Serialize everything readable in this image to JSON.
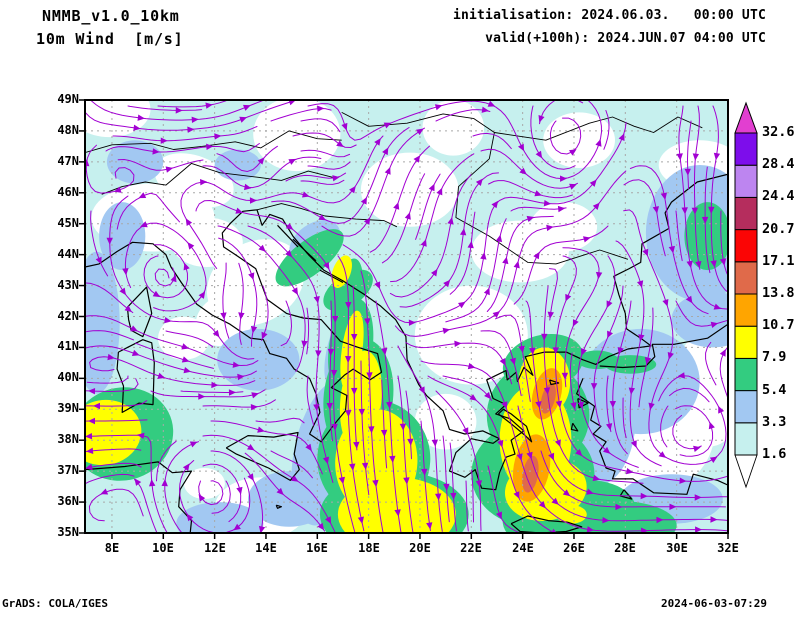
{
  "header": {
    "model_title": "NMMB_v1.0_10km",
    "field_title": "10m Wind  [m/s]",
    "init_line": "initialisation: 2024.06.03.   00:00 UTC",
    "valid_line": "valid(+100h): 2024.JUN.07 04:00 UTC"
  },
  "footer": {
    "credit": "GrADS: COLA/IGES",
    "timestamp": "2024-06-03-07:29"
  },
  "axes": {
    "lat_ticks": [
      "49N",
      "48N",
      "47N",
      "46N",
      "45N",
      "44N",
      "43N",
      "42N",
      "41N",
      "40N",
      "39N",
      "38N",
      "37N",
      "36N",
      "35N"
    ],
    "lon_ticks": [
      "8E",
      "10E",
      "12E",
      "14E",
      "16E",
      "18E",
      "20E",
      "22E",
      "24E",
      "26E",
      "28E",
      "30E",
      "32E"
    ]
  },
  "colorbar": {
    "levels": [
      "1.6",
      "3.3",
      "5.4",
      "7.9",
      "10.7",
      "13.8",
      "17.1",
      "20.7",
      "24.4",
      "28.4",
      "32.6"
    ],
    "colors": [
      "#c6f0ee",
      "#a2c8f2",
      "#33cc80",
      "#ffff00",
      "#ffa500",
      "#e06a4a",
      "#fb0505",
      "#b52d5d",
      "#bd85f0",
      "#7d0deb"
    ],
    "over_color": "#e23fd0",
    "under_color": "#ffffff"
  },
  "map": {
    "lon_min": 6.95,
    "lon_max": 32,
    "lat_min": 35,
    "lat_max": 49,
    "stream_color": "#a200d2",
    "coast_color": "#000000",
    "grid_color": "#a8a8a8",
    "palette": {
      "w": "#ffffff",
      "c1": "#c6f0ee",
      "c2": "#a2c8f2",
      "g": "#33cc80",
      "y": "#ffff00",
      "o": "#ffa500",
      "s": "#e06a4a"
    },
    "shading": [
      [
        "w",
        7.9,
        48.7,
        1.6,
        0.9,
        0
      ],
      [
        "w",
        15.2,
        47.9,
        1.7,
        1.2,
        0
      ],
      [
        "w",
        11.2,
        46.4,
        1.6,
        0.8,
        20
      ],
      [
        "w",
        9.6,
        45.2,
        2.4,
        1.1,
        0
      ],
      [
        "w",
        11.7,
        44.4,
        1.4,
        0.8,
        0
      ],
      [
        "w",
        13.6,
        43.1,
        2.0,
        1.3,
        -30
      ],
      [
        "w",
        12.4,
        41.9,
        1.2,
        0.8,
        -30
      ],
      [
        "w",
        21.3,
        48.1,
        1.2,
        0.9,
        0
      ],
      [
        "w",
        19.6,
        46.1,
        1.9,
        1.2,
        0
      ],
      [
        "w",
        22.0,
        41.4,
        2.2,
        1.6,
        0
      ],
      [
        "w",
        21.0,
        38.6,
        1.2,
        0.9,
        0
      ],
      [
        "w",
        23.9,
        44.1,
        1.9,
        1.0,
        0
      ],
      [
        "w",
        26.2,
        47.7,
        1.4,
        0.9,
        0
      ],
      [
        "w",
        29.6,
        38.4,
        1.9,
        1.9,
        0
      ],
      [
        "w",
        28.7,
        36.7,
        1.4,
        1.0,
        0
      ],
      [
        "w",
        31.3,
        39.7,
        1.4,
        1.9,
        0
      ],
      [
        "w",
        30.9,
        46.9,
        1.6,
        0.8,
        0
      ],
      [
        "w",
        25.6,
        44.9,
        1.3,
        0.8,
        0
      ],
      [
        "w",
        13.8,
        35.8,
        1.8,
        1.0,
        0
      ],
      [
        "w",
        11.6,
        36.6,
        0.8,
        0.5,
        0
      ],
      [
        "w",
        10.8,
        41.3,
        1.0,
        0.7,
        0
      ],
      [
        "c2",
        8.9,
        47.0,
        1.1,
        0.7,
        0
      ],
      [
        "c2",
        12.9,
        46.9,
        0.9,
        0.5,
        0
      ],
      [
        "c2",
        8.4,
        44.6,
        0.9,
        1.1,
        0
      ],
      [
        "c2",
        7.4,
        41.8,
        0.9,
        2.3,
        0
      ],
      [
        "c2",
        13.7,
        40.6,
        1.6,
        1.0,
        0
      ],
      [
        "c2",
        15.9,
        44.4,
        1.1,
        0.6,
        -35
      ],
      [
        "c2",
        16.4,
        37.6,
        1.3,
        2.4,
        12
      ],
      [
        "c2",
        14.9,
        36.1,
        1.6,
        0.9,
        0
      ],
      [
        "c2",
        17.0,
        41.0,
        0.6,
        1.4,
        15
      ],
      [
        "c2",
        26.8,
        38.7,
        1.6,
        2.2,
        0
      ],
      [
        "c2",
        28.6,
        39.9,
        2.3,
        1.7,
        0
      ],
      [
        "c2",
        30.9,
        44.7,
        2.1,
        2.2,
        0
      ],
      [
        "c2",
        31.4,
        41.9,
        1.6,
        0.9,
        0
      ],
      [
        "c2",
        29.8,
        36.1,
        2.0,
        0.8,
        0
      ],
      [
        "c2",
        12.2,
        35.3,
        1.7,
        0.7,
        0
      ],
      [
        "g",
        17.15,
        42.6,
        0.55,
        1.3,
        12
      ],
      [
        "g",
        17.3,
        41.0,
        0.85,
        1.6,
        8
      ],
      [
        "g",
        17.6,
        39.4,
        1.35,
        1.9,
        6
      ],
      [
        "g",
        18.2,
        37.4,
        2.2,
        1.9,
        3
      ],
      [
        "g",
        19.0,
        35.6,
        2.9,
        1.4,
        0
      ],
      [
        "g",
        15.7,
        43.9,
        1.6,
        0.55,
        -38
      ],
      [
        "g",
        17.2,
        42.85,
        1.1,
        0.5,
        -35
      ],
      [
        "g",
        8.4,
        38.2,
        2.0,
        1.5,
        -15
      ],
      [
        "g",
        24.8,
        40.5,
        1.6,
        0.9,
        -15
      ],
      [
        "g",
        24.6,
        38.8,
        2.0,
        1.7,
        0
      ],
      [
        "g",
        24.4,
        36.9,
        2.4,
        1.7,
        0
      ],
      [
        "g",
        25.8,
        35.6,
        2.6,
        1.1,
        -8
      ],
      [
        "g",
        27.6,
        35.25,
        2.4,
        0.8,
        0
      ],
      [
        "g",
        26.9,
        40.6,
        0.8,
        0.3,
        0
      ],
      [
        "g",
        28.2,
        40.45,
        1.0,
        0.3,
        0
      ],
      [
        "g",
        31.2,
        44.6,
        0.9,
        1.1,
        0
      ],
      [
        "y",
        7.7,
        38.25,
        1.45,
        1.05,
        -10
      ],
      [
        "y",
        16.95,
        43.45,
        0.35,
        0.55,
        20
      ],
      [
        "y",
        17.35,
        40.9,
        0.4,
        1.3,
        8
      ],
      [
        "y",
        17.7,
        39.3,
        0.8,
        1.6,
        6
      ],
      [
        "y",
        18.3,
        37.3,
        1.6,
        1.7,
        3
      ],
      [
        "y",
        19.1,
        35.6,
        2.3,
        1.2,
        0
      ],
      [
        "y",
        24.85,
        39.9,
        1.0,
        1.1,
        0
      ],
      [
        "y",
        24.5,
        38.0,
        1.4,
        1.8,
        0
      ],
      [
        "y",
        24.9,
        36.4,
        1.6,
        1.0,
        -10
      ],
      [
        "y",
        25.9,
        35.6,
        0.6,
        0.3,
        0
      ],
      [
        "o",
        24.95,
        39.5,
        0.55,
        0.85,
        15
      ],
      [
        "o",
        24.35,
        37.1,
        0.7,
        1.1,
        10
      ],
      [
        "s",
        25.0,
        39.35,
        0.26,
        0.5,
        15
      ],
      [
        "s",
        24.3,
        36.9,
        0.3,
        0.6,
        10
      ]
    ],
    "coastlines": [
      [
        6.95,
        43.6,
        7.5,
        43.7,
        8.2,
        44.1,
        8.8,
        44.4,
        9.6,
        44.35,
        10.1,
        44.0,
        10.3,
        43.6,
        10.7,
        43.1,
        11.3,
        42.4,
        11.9,
        42.05,
        12.6,
        41.75,
        13.4,
        41.3,
        13.9,
        41.25,
        14.15,
        40.8,
        14.8,
        40.65,
        15.1,
        40.3,
        15.7,
        40.0,
        15.95,
        39.5,
        16.1,
        38.9,
        15.7,
        38.2,
        16.15,
        37.95,
        16.6,
        38.45,
        17.1,
        38.95,
        17.15,
        39.45,
        16.55,
        39.7,
        17.05,
        40.1,
        17.4,
        40.3,
        18.05,
        39.95,
        18.5,
        40.2,
        18.35,
        40.8,
        17.6,
        41.0,
        16.9,
        41.2,
        16.15,
        41.9,
        15.45,
        41.95,
        14.8,
        42.1,
        14.05,
        42.55,
        13.6,
        43.55,
        12.9,
        43.95,
        12.35,
        44.25,
        12.3,
        44.7,
        12.6,
        45.0,
        13.1,
        45.4,
        13.65,
        45.45,
        13.85,
        44.95,
        14.15,
        45.3,
        14.65,
        45.15,
        15.05,
        44.6,
        15.65,
        44.0,
        16.25,
        43.5,
        17.0,
        43.15,
        17.85,
        42.7,
        18.45,
        42.35,
        19.05,
        41.9,
        19.45,
        41.35,
        19.5,
        40.6,
        19.95,
        39.8,
        20.25,
        39.45,
        20.9,
        38.95,
        21.15,
        38.35,
        21.75,
        38.2,
        22.45,
        38.3,
        23.1,
        38.05,
        22.85,
        37.9,
        22.0,
        38.05,
        21.4,
        37.6,
        21.15,
        37.0,
        21.75,
        36.8,
        22.15,
        37.05,
        22.4,
        36.45,
        22.95,
        36.4,
        23.1,
        36.95,
        23.35,
        37.45,
        23.7,
        37.55,
        23.55,
        38.0,
        24.05,
        38.3,
        23.5,
        38.7,
        22.95,
        38.85,
        23.35,
        39.15,
        22.85,
        39.35,
        22.6,
        39.95,
        23.35,
        40.25,
        23.4,
        39.95,
        23.75,
        40.2,
        23.8,
        39.9,
        24.05,
        40.35,
        24.4,
        40.1,
        24.1,
        40.7,
        24.85,
        40.85,
        25.7,
        40.85,
        26.35,
        40.6,
        26.85,
        40.45,
        27.35,
        40.7,
        28.1,
        40.95,
        29.0,
        41.05,
        28.6,
        41.3,
        28.05,
        41.6,
        28.0,
        42.1,
        27.75,
        42.7,
        27.55,
        43.3,
        28.15,
        43.55,
        28.6,
        43.75,
        28.65,
        44.35,
        29.7,
        44.85,
        29.55,
        45.35,
        29.8,
        45.7,
        30.8,
        46.35,
        32,
        46.6
      ],
      [
        26.35,
        40.0,
        26.1,
        39.5,
        26.8,
        39.1,
        26.65,
        38.65,
        27.05,
        38.45,
        26.75,
        38.2,
        27.25,
        37.95,
        27.0,
        37.65,
        27.25,
        37.1,
        27.6,
        37.0,
        27.5,
        36.75,
        28.3,
        36.75,
        29.1,
        36.3,
        30.4,
        36.25,
        30.65,
        36.9,
        31.6,
        36.7,
        32,
        36.55
      ],
      [
        27.0,
        40.4,
        27.9,
        40.35,
        28.8,
        40.4,
        29.15,
        40.7,
        29.05,
        41.1,
        29.9,
        41.1,
        31.2,
        41.3,
        32,
        41.75
      ],
      [
        6.95,
        37.05,
        8.5,
        37.15,
        9.8,
        37.3,
        10.35,
        36.95,
        11.1,
        37.0,
        10.65,
        36.4,
        10.6,
        35.85,
        11.1,
        35.4,
        11.05,
        35.0
      ],
      [
        12.45,
        37.75,
        13.3,
        38.15,
        14.3,
        38.1,
        15.25,
        38.25,
        15.1,
        37.55,
        15.3,
        37.05,
        14.95,
        36.7,
        14.1,
        37.1,
        12.85,
        37.55,
        12.45,
        37.75
      ],
      [
        8.25,
        40.85,
        9.2,
        41.25,
        9.55,
        41.15,
        9.65,
        40.5,
        9.6,
        39.15,
        9.05,
        39.2,
        8.4,
        38.9,
        8.45,
        39.75,
        8.2,
        40.3,
        8.25,
        40.85
      ],
      [
        8.6,
        42.3,
        9.35,
        42.95,
        9.55,
        42.1,
        9.2,
        41.35,
        8.75,
        41.55,
        8.65,
        41.9,
        8.6,
        42.3
      ],
      [
        23.55,
        35.3,
        24.2,
        35.55,
        25.0,
        35.4,
        25.75,
        35.35,
        26.3,
        35.2,
        25.7,
        35.05,
        24.7,
        35.0,
        23.9,
        35.05,
        23.55,
        35.3
      ],
      [
        23.05,
        38.85,
        23.6,
        38.5,
        24.1,
        38.15,
        24.35,
        37.95,
        24.15,
        38.45,
        23.55,
        38.85,
        23.25,
        39.0,
        23.05,
        38.85
      ],
      [
        26.15,
        39.35,
        26.55,
        39.2,
        26.2,
        39.05,
        26.15,
        39.35
      ],
      [
        25.95,
        38.55,
        26.15,
        38.3,
        25.9,
        38.35,
        25.95,
        38.55
      ],
      [
        27.95,
        36.4,
        28.25,
        36.1,
        27.8,
        36.2,
        27.95,
        36.4
      ],
      [
        25.05,
        39.95,
        25.4,
        39.85,
        25.1,
        39.8,
        25.05,
        39.95
      ],
      [
        14.45,
        44.95,
        15.25,
        44.25
      ],
      [
        15.05,
        44.5,
        15.95,
        43.8
      ],
      [
        16.1,
        43.5,
        17.0,
        43.1
      ],
      [
        14.4,
        35.9,
        14.6,
        35.85,
        14.45,
        35.8,
        14.4,
        35.9
      ]
    ],
    "borders": [
      [
        6.95,
        47.3,
        8.0,
        47.55,
        9.5,
        47.6,
        10.4,
        47.4,
        11.5,
        47.5,
        12.8,
        47.65,
        13.8,
        47.45,
        14.9,
        48.0,
        16.0,
        47.75,
        16.95,
        47.7
      ],
      [
        7.6,
        45.95,
        8.4,
        46.2,
        9.3,
        46.35,
        10.1,
        46.25,
        11.1,
        46.95,
        12.2,
        46.65,
        13.7,
        46.5,
        14.6,
        46.4,
        15.65,
        46.7,
        16.6,
        46.5
      ],
      [
        16.95,
        48.6,
        18.0,
        48.15,
        19.5,
        48.25,
        20.9,
        48.55,
        22.1,
        48.4,
        22.9,
        47.95,
        24.9,
        47.7,
        26.6,
        48.25,
        27.5,
        48.45,
        28.35,
        48.15,
        29.1,
        47.95,
        30.05,
        48.45,
        31.0,
        48.1
      ],
      [
        22.9,
        47.95,
        22.7,
        47.1,
        21.5,
        46.2,
        21.4,
        45.2,
        22.7,
        44.6,
        24.2,
        43.75,
        25.3,
        43.7,
        27.0,
        44.15,
        28.1,
        43.85
      ],
      [
        13.65,
        45.45,
        14.6,
        45.65,
        15.35,
        45.5,
        16.3,
        45.25,
        17.5,
        45.15,
        18.6,
        45.1,
        19.1,
        44.9
      ]
    ],
    "flow": {
      "vortices": [
        [
          9.9,
          43.3,
          1.0,
          1.5
        ],
        [
          11.8,
          36.5,
          -1.5,
          1.8
        ],
        [
          13.4,
          46.4,
          0.8,
          1.3
        ],
        [
          8.3,
          46.7,
          -0.7,
          1.2
        ],
        [
          25.9,
          47.4,
          1.1,
          2.0
        ],
        [
          27.9,
          46.2,
          -0.8,
          1.5
        ],
        [
          30.6,
          38.1,
          0.9,
          1.7
        ]
      ],
      "streams": [
        [
          7.6,
          38.4,
          -2.4,
          0.2,
          1.5
        ],
        [
          17.3,
          42.6,
          -0.3,
          -1.8,
          1.3
        ],
        [
          17.4,
          40.8,
          -0.1,
          -2.2,
          1.4
        ],
        [
          17.9,
          38.8,
          0.15,
          -2.4,
          1.7
        ],
        [
          18.6,
          36.6,
          0.25,
          -2.4,
          1.9
        ],
        [
          19.3,
          35.2,
          0.3,
          -2.2,
          2.0
        ],
        [
          15.2,
          44.3,
          0.9,
          -0.9,
          1.3
        ],
        [
          24.9,
          41.5,
          0.0,
          -1.5,
          1.2
        ],
        [
          24.7,
          39.5,
          0.0,
          -2.2,
          1.4
        ],
        [
          24.5,
          37.4,
          0.4,
          -2.2,
          1.4
        ],
        [
          25.4,
          35.8,
          1.4,
          -1.2,
          1.4
        ],
        [
          27.2,
          35.3,
          2.2,
          -0.1,
          1.7
        ],
        [
          30.0,
          35.4,
          2.2,
          0.15,
          1.8
        ],
        [
          19.3,
          45.8,
          0.5,
          1.4,
          2.0
        ],
        [
          20.8,
          47.8,
          1.3,
          0.7,
          1.5
        ],
        [
          10.0,
          48.6,
          1.5,
          -0.1,
          1.5
        ],
        [
          14.5,
          48.8,
          1.3,
          0.3,
          1.5
        ],
        [
          30.9,
          44.5,
          -0.2,
          -1.5,
          1.6
        ],
        [
          28.4,
          41.0,
          -0.3,
          -1.7,
          1.5
        ],
        [
          27.9,
          38.9,
          0.0,
          -1.6,
          1.3
        ],
        [
          7.8,
          44.9,
          0.1,
          -1.1,
          1.2
        ],
        [
          26.6,
          41.9,
          -1.0,
          -0.7,
          1.3
        ],
        [
          23.6,
          43.3,
          0.25,
          0.9,
          1.5
        ]
      ]
    }
  }
}
